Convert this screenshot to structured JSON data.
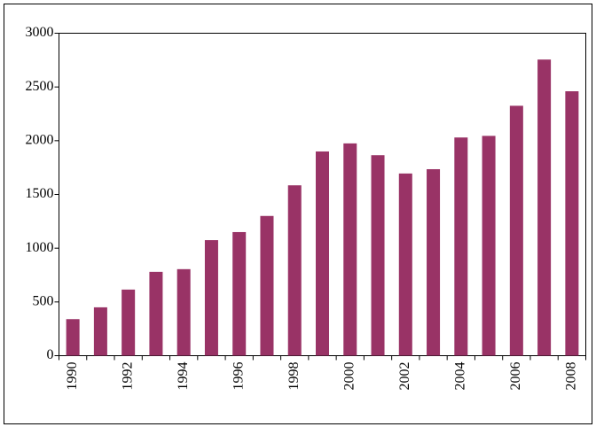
{
  "chart_data": {
    "type": "bar",
    "categories": [
      "1990",
      null,
      "1992",
      null,
      "1994",
      null,
      "1996",
      null,
      "1998",
      null,
      "2000",
      null,
      "2002",
      null,
      "2004",
      null,
      "2006",
      null,
      "2008"
    ],
    "values": [
      340,
      450,
      615,
      780,
      805,
      1075,
      1150,
      1300,
      1585,
      1900,
      1975,
      1865,
      1695,
      1735,
      2030,
      2045,
      2325,
      2755,
      2460
    ],
    "color": "#993366",
    "ylim": [
      0,
      3000
    ],
    "yticks": [
      0,
      500,
      1000,
      1500,
      2000,
      2500,
      3000
    ],
    "grid": false
  }
}
